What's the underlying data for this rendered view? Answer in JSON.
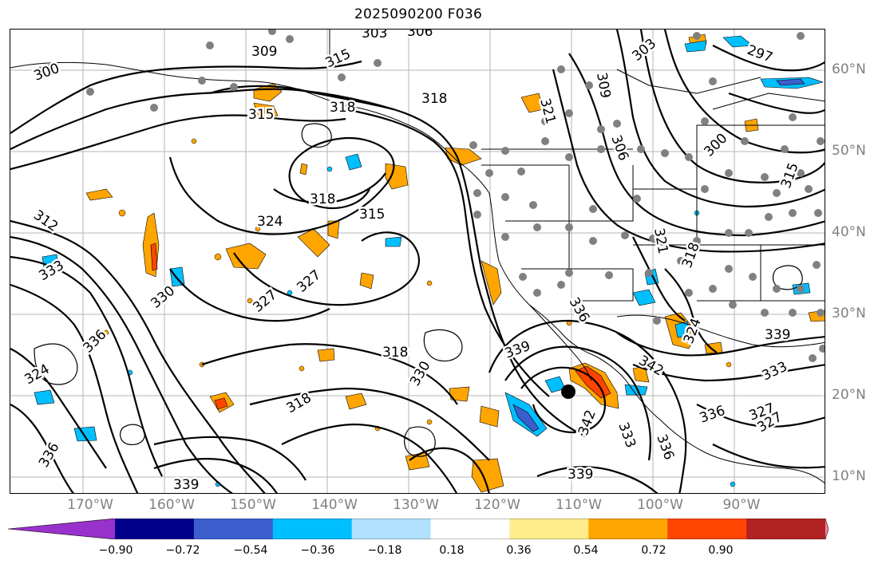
{
  "title": "2025090200 F036",
  "lon_labels": [
    "170°W",
    "160°W",
    "150°W",
    "140°W",
    "130°W",
    "120°W",
    "110°W",
    "100°W",
    "90°W"
  ],
  "lat_labels": [
    "60°N",
    "50°N",
    "40°N",
    "30°N",
    "20°N",
    "10°N"
  ],
  "colorbar": {
    "ticks": [
      "−0.90",
      "−0.72",
      "−0.54",
      "−0.36",
      "−0.18",
      "0.18",
      "0.36",
      "0.54",
      "0.72",
      "0.90"
    ],
    "colors": [
      "#9932cc",
      "#00008b",
      "#3a5fcd",
      "#00bfff",
      "#b0e2ff",
      "#ffffff",
      "#ffec8b",
      "#ffa500",
      "#ff4500",
      "#b22222",
      "#ff82ab"
    ]
  },
  "contour_labels": [
    {
      "text": "303"
    },
    {
      "text": "306"
    },
    {
      "text": "309"
    },
    {
      "text": "315"
    },
    {
      "text": "300"
    },
    {
      "text": "318"
    },
    {
      "text": "318"
    },
    {
      "text": "315"
    },
    {
      "text": "321"
    },
    {
      "text": "303"
    },
    {
      "text": "297"
    },
    {
      "text": "309"
    },
    {
      "text": "306"
    },
    {
      "text": "300"
    },
    {
      "text": "315"
    },
    {
      "text": "312"
    },
    {
      "text": "318"
    },
    {
      "text": "315"
    },
    {
      "text": "324"
    },
    {
      "text": "327"
    },
    {
      "text": "327"
    },
    {
      "text": "330"
    },
    {
      "text": "333"
    },
    {
      "text": "336"
    },
    {
      "text": "324"
    },
    {
      "text": "318"
    },
    {
      "text": "330"
    },
    {
      "text": "318"
    },
    {
      "text": "339"
    },
    {
      "text": "336"
    },
    {
      "text": "342"
    },
    {
      "text": "339"
    },
    {
      "text": "342"
    },
    {
      "text": "333"
    },
    {
      "text": "336"
    },
    {
      "text": "336"
    },
    {
      "text": "327"
    },
    {
      "text": "333"
    },
    {
      "text": "339"
    },
    {
      "text": "336"
    },
    {
      "text": "339"
    },
    {
      "text": "324"
    },
    {
      "text": "321"
    },
    {
      "text": "318"
    },
    {
      "text": "327"
    }
  ]
}
